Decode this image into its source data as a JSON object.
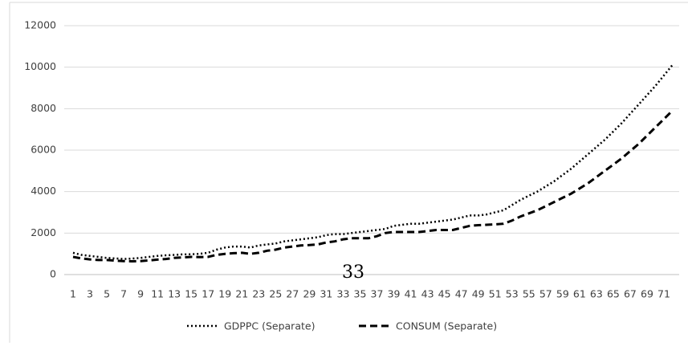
{
  "chart_data": {
    "type": "line",
    "categories": [
      1,
      null,
      3,
      null,
      5,
      null,
      7,
      null,
      9,
      null,
      11,
      null,
      13,
      null,
      15,
      null,
      17,
      null,
      19,
      null,
      21,
      null,
      23,
      null,
      25,
      null,
      27,
      null,
      29,
      null,
      31,
      null,
      33,
      null,
      35,
      null,
      37,
      null,
      39,
      null,
      41,
      null,
      43,
      null,
      45,
      null,
      47,
      null,
      49,
      null,
      51,
      null,
      53,
      null,
      55,
      null,
      57,
      null,
      59,
      null,
      61,
      null,
      63,
      null,
      65,
      null,
      67,
      null,
      69,
      null,
      71,
      null
    ],
    "series": [
      {
        "name": "GDPPC (Separate)",
        "color": "#000000",
        "dash": "dotted",
        "values": [
          1050,
          950,
          900,
          850,
          800,
          780,
          750,
          770,
          800,
          850,
          900,
          930,
          950,
          970,
          980,
          1000,
          1050,
          1200,
          1300,
          1350,
          1350,
          1300,
          1400,
          1450,
          1500,
          1600,
          1650,
          1700,
          1750,
          1800,
          1900,
          1950,
          1950,
          2000,
          2050,
          2100,
          2150,
          2200,
          2350,
          2400,
          2450,
          2450,
          2500,
          2550,
          2600,
          2650,
          2750,
          2850,
          2850,
          2900,
          3000,
          3100,
          3350,
          3600,
          3800,
          4000,
          4250,
          4500,
          4800,
          5100,
          5450,
          5800,
          6150,
          6500,
          6900,
          7300,
          7750,
          8200,
          8650,
          9100,
          9600,
          10100
        ]
      },
      {
        "name": "CONSUM (Separate)",
        "color": "#000000",
        "dash": "dashed",
        "values": [
          850,
          780,
          730,
          700,
          700,
          670,
          650,
          640,
          650,
          680,
          720,
          750,
          800,
          830,
          850,
          840,
          850,
          950,
          1000,
          1030,
          1050,
          1000,
          1050,
          1150,
          1200,
          1300,
          1350,
          1400,
          1420,
          1450,
          1550,
          1600,
          1700,
          1750,
          1750,
          1750,
          1850,
          2000,
          2050,
          2050,
          2050,
          2050,
          2100,
          2150,
          2150,
          2150,
          2250,
          2350,
          2380,
          2400,
          2420,
          2450,
          2600,
          2800,
          2950,
          3100,
          3300,
          3500,
          3700,
          3900,
          4150,
          4400,
          4700,
          5000,
          5300,
          5600,
          5950,
          6300,
          6700,
          7100,
          7500,
          7900
        ]
      }
    ],
    "ylim": [
      0,
      12000
    ],
    "yticks": [
      0,
      2000,
      4000,
      6000,
      8000,
      10000,
      12000
    ],
    "grid": true,
    "legend": "bottom",
    "page_number": "33"
  }
}
